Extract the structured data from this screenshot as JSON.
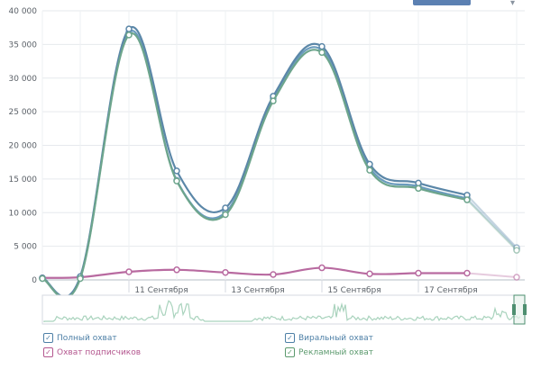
{
  "chart_data": {
    "type": "line",
    "ylim": [
      0,
      40000
    ],
    "y_ticks": [
      "0",
      "5 000",
      "10 000",
      "15 000",
      "20 000",
      "25 000",
      "30 000",
      "35 000",
      "40 000"
    ],
    "x_ticks": [
      "11 Сентября",
      "13 Сентября",
      "15 Сентября",
      "17 Сентября"
    ],
    "x_dates": [
      "9 Сентября",
      "10 Сентября",
      "11 Сентября",
      "12 Сентября",
      "13 Сентября",
      "14 Сентября",
      "15 Сентября",
      "16 Сентября",
      "17 Сентября",
      "18 Сентября",
      "19 Сентября"
    ],
    "grid": true,
    "legend_position": "bottom",
    "series": [
      {
        "name": "Полный охват",
        "color": "#5b87a8",
        "values": [
          300,
          500,
          37300,
          16200,
          10700,
          27300,
          34700,
          17200,
          14400,
          12600,
          4800
        ]
      },
      {
        "name": "Виральный охват",
        "color": "#6a9bbd",
        "values": [
          200,
          300,
          36800,
          14800,
          10000,
          27000,
          34200,
          16700,
          13900,
          12100,
          4600
        ]
      },
      {
        "name": "Охват подписчиков",
        "color": "#b86aa0",
        "values": [
          300,
          400,
          1200,
          1500,
          1100,
          800,
          1800,
          900,
          1000,
          1000,
          400
        ]
      },
      {
        "name": "Рекламный охват",
        "color": "#6da58c",
        "values": [
          200,
          200,
          36400,
          14700,
          9700,
          26600,
          33800,
          16300,
          13600,
          11900,
          4400
        ]
      }
    ]
  },
  "legend": {
    "items": [
      {
        "label": "Полный охват",
        "color": "#4d7fa6"
      },
      {
        "label": "Охват подписчиков",
        "color": "#b4578f"
      },
      {
        "label": "Виральный охват",
        "color": "#4d7fa6"
      },
      {
        "label": "Рекламный охват",
        "color": "#5c9a6e"
      }
    ]
  },
  "navigator": {
    "line_color": "#a9d3bd",
    "handle_color": "#4e8f70"
  },
  "top_control": {
    "color": "#5b80b2"
  }
}
